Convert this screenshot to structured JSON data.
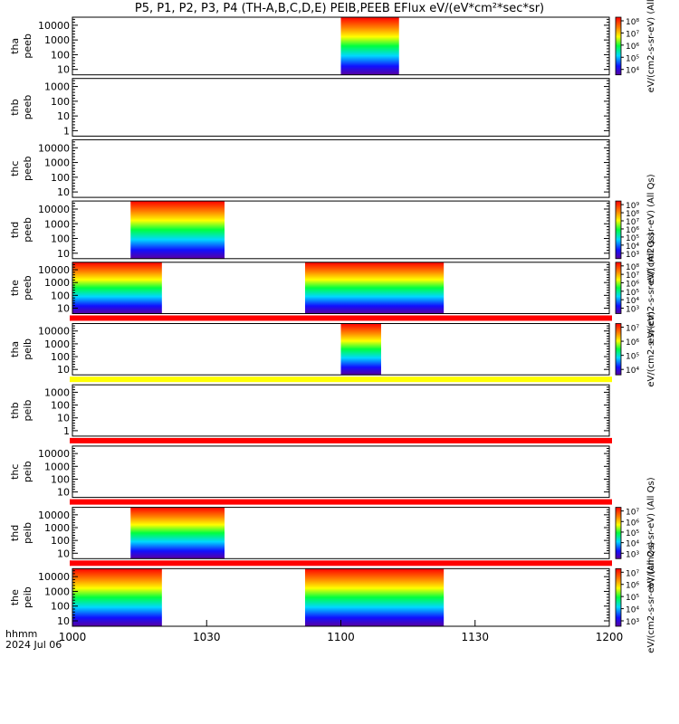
{
  "chart_data": {
    "type": "heatmap",
    "title": "P5, P1, P2, P3, P4 (TH-A,B,C,D,E) PEIB,PEEB EFlux eV/(eV*cm²*sec*sr)",
    "x_axis": {
      "tick_labels": [
        "1000",
        "1030",
        "1100",
        "1130",
        "1200"
      ],
      "corner_label_1": "hhmm",
      "corner_label_2": "2024 Jul 06"
    },
    "panels": [
      {
        "probe": "tha",
        "species": "peeb",
        "label_probe": "tha",
        "label_species": "peeb",
        "yticks": [
          "10",
          "100",
          "1000",
          "10000"
        ],
        "data_intervals": [
          {
            "start": "11:00",
            "end": "11:13"
          }
        ],
        "colorbar": {
          "ticks": [
            "10⁴",
            "10⁵",
            "10⁶",
            "10⁷",
            "10⁸"
          ],
          "label": "eV/(cm2-s-sr-eV) (All"
        },
        "status_bar": "none"
      },
      {
        "probe": "thb",
        "species": "peeb",
        "label_probe": "thb",
        "label_species": "peeb",
        "yticks": [
          "1",
          "10",
          "100",
          "1000"
        ],
        "data_intervals": [],
        "colorbar": null,
        "status_bar": "none"
      },
      {
        "probe": "thc",
        "species": "peeb",
        "label_probe": "thc",
        "label_species": "peeb",
        "yticks": [
          "10",
          "100",
          "1000",
          "10000"
        ],
        "data_intervals": [],
        "colorbar": null,
        "status_bar": "none"
      },
      {
        "probe": "thd",
        "species": "peeb",
        "label_probe": "thd",
        "label_species": "peeb",
        "yticks": [
          "10",
          "100",
          "1000",
          "10000"
        ],
        "data_intervals": [
          {
            "start": "10:13",
            "end": "10:34"
          }
        ],
        "colorbar": {
          "ticks": [
            "10³",
            "10⁴",
            "10⁵",
            "10⁶",
            "10⁷",
            "10⁸",
            "10⁹"
          ],
          "label": "eV/(cm2-s-sr-eV) (All Qs)"
        },
        "status_bar": "none"
      },
      {
        "probe": "the",
        "species": "peeb",
        "label_probe": "the",
        "label_species": "peeb",
        "yticks": [
          "10",
          "100",
          "1000",
          "10000"
        ],
        "data_intervals": [
          {
            "start": "10:00",
            "end": "10:20"
          },
          {
            "start": "10:52",
            "end": "11:23"
          }
        ],
        "colorbar": {
          "ticks": [
            "10³",
            "10⁴",
            "10⁵",
            "10⁶",
            "10⁷",
            "10⁸"
          ],
          "label": "eV/(cm2-s-sr-eV) (All Qs)"
        },
        "status_bar": "red"
      },
      {
        "probe": "tha",
        "species": "peib",
        "label_probe": "tha",
        "label_species": "peib",
        "yticks": [
          "10",
          "100",
          "1000",
          "10000"
        ],
        "data_intervals": [
          {
            "start": "11:00",
            "end": "11:09"
          }
        ],
        "colorbar": {
          "ticks": [
            "10⁴",
            "10⁵",
            "10⁶",
            "10⁷"
          ],
          "label": "eV/(cm2-s-sr-eV)"
        },
        "status_bar": "yellow"
      },
      {
        "probe": "thb",
        "species": "peib",
        "label_probe": "thb",
        "label_species": "peib",
        "yticks": [
          "1",
          "10",
          "100",
          "1000"
        ],
        "data_intervals": [],
        "colorbar": null,
        "status_bar": "red"
      },
      {
        "probe": "thc",
        "species": "peib",
        "label_probe": "thc",
        "label_species": "peib",
        "yticks": [
          "10",
          "100",
          "1000",
          "10000"
        ],
        "data_intervals": [],
        "colorbar": null,
        "status_bar": "red"
      },
      {
        "probe": "thd",
        "species": "peib",
        "label_probe": "thd",
        "label_species": "peib",
        "yticks": [
          "10",
          "100",
          "1000",
          "10000"
        ],
        "data_intervals": [
          {
            "start": "10:13",
            "end": "10:34"
          }
        ],
        "colorbar": {
          "ticks": [
            "10³",
            "10⁴",
            "10⁵",
            "10⁶",
            "10⁷"
          ],
          "label": "eV/(cm2-s-sr-eV) (All Qs)"
        },
        "status_bar": "red"
      },
      {
        "probe": "the",
        "species": "peib",
        "label_probe": "the",
        "label_species": "peib",
        "yticks": [
          "10",
          "100",
          "1000",
          "10000"
        ],
        "data_intervals": [
          {
            "start": "10:00",
            "end": "10:20"
          },
          {
            "start": "10:52",
            "end": "11:23"
          }
        ],
        "colorbar": {
          "ticks": [
            "10³",
            "10⁴",
            "10⁵",
            "10⁶",
            "10⁷"
          ],
          "label": "eV/(cm2-s-sr-eV) (All Qs)"
        },
        "status_bar": "none"
      }
    ],
    "colors": {
      "status_red": "#ff0000",
      "status_yellow": "#ffff00"
    }
  }
}
